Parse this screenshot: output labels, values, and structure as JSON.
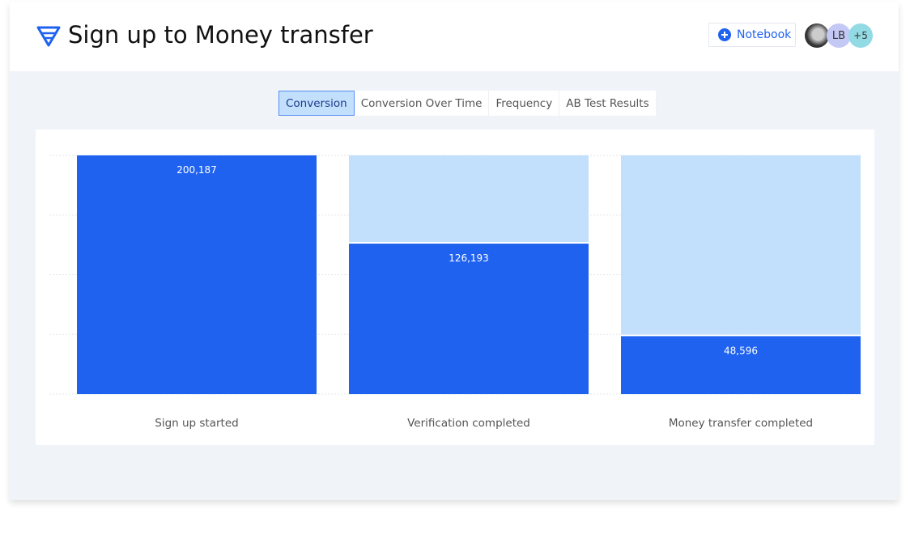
{
  "header": {
    "title": "Sign up to Money transfer",
    "notebook_label": "Notebook",
    "avatar_initials": "LB",
    "avatar_more": "+5"
  },
  "tabs": [
    {
      "label": "Conversion",
      "active": true
    },
    {
      "label": "Conversion Over Time"
    },
    {
      "label": "Frequency"
    },
    {
      "label": "AB Test Results"
    }
  ],
  "colors": {
    "accent": "#1f62f0",
    "bar": "#1f62f0",
    "bar_remaining": "#c2dffc"
  },
  "chart_data": {
    "type": "bar",
    "stacked_funnel": true,
    "categories": [
      "Sign up started",
      "Verification completed",
      "Money transfer completed"
    ],
    "values": [
      200187,
      126193,
      48596
    ],
    "value_labels": [
      "200,187",
      "126,193",
      "48,596"
    ],
    "ylim": [
      0,
      200187
    ],
    "grid": true
  }
}
